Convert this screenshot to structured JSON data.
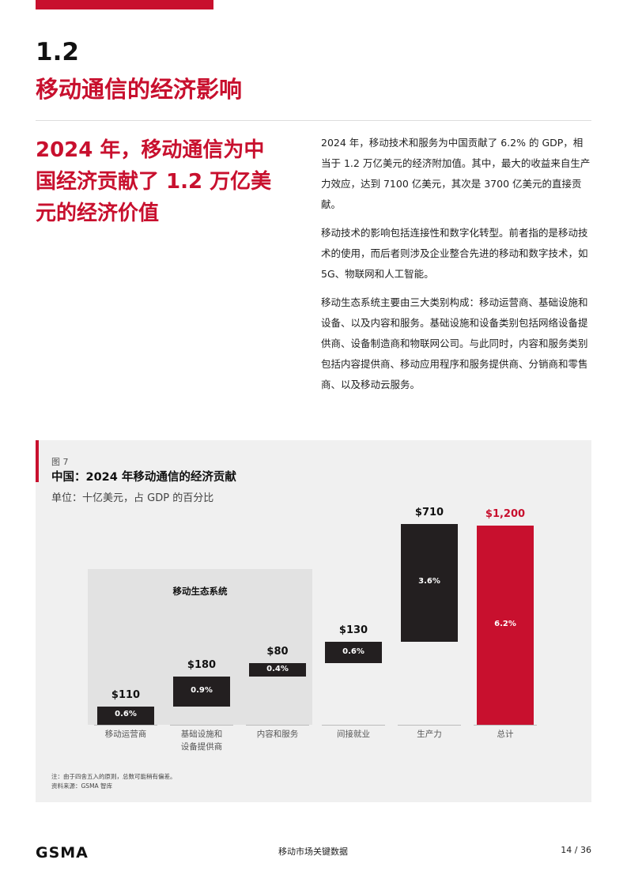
{
  "header": {
    "section": "1.2",
    "title": "移动通信的经济影响"
  },
  "headline": "2024 年，移动通信为中国经济贡献了 1.2 万亿美元的经济价值",
  "body": [
    "2024 年，移动技术和服务为中国贡献了 6.2% 的 GDP，相当于 1.2 万亿美元的经济附加值。其中，最大的收益来自生产力效应，达到 7100 亿美元，其次是 3700 亿美元的直接贡献。",
    "移动技术的影响包括连接性和数字化转型。前者指的是移动技术的使用，而后者则涉及企业整合先进的移动和数字技术，如 5G、物联网和人工智能。",
    "移动生态系统主要由三大类别构成：移动运营商、基础设施和设备、以及内容和服务。基础设施和设备类别包括网络设备提供商、设备制造商和物联网公司。与此同时，内容和服务类别包括内容提供商、移动应用程序和服务提供商、分销商和零售商、以及移动云服务。"
  ],
  "chart_data": {
    "type": "waterfall",
    "figure_label": "图 7",
    "title": "中国：2024 年移动通信的经济贡献",
    "subtitle": "单位：十亿美元，占 GDP 的百分比",
    "annotation": "移动生态系统",
    "categories": [
      "移动运营商",
      "基础设施和设备提供商",
      "内容和服务",
      "间接就业",
      "生产力",
      "总计"
    ],
    "values": [
      110,
      180,
      80,
      130,
      710,
      1200
    ],
    "value_labels": [
      "$110",
      "$180",
      "$80",
      "$130",
      "$710",
      "$1,200"
    ],
    "share_values": [
      0.6,
      0.9,
      0.4,
      0.6,
      3.6,
      6.2
    ],
    "share_labels": [
      "0.6%",
      "0.9%",
      "0.4%",
      "0.6%",
      "3.6%",
      "6.2%"
    ],
    "measure": [
      "relative",
      "relative",
      "relative",
      "relative",
      "relative",
      "total"
    ],
    "color": "#231f20",
    "total_color": "#c8102e",
    "notes": [
      "注：由于四舍五入的原则，总数可能稍有偏差。",
      "资料来源：GSMA 智库"
    ]
  },
  "footer": {
    "logo": "GSMA",
    "center": "移动市场关键数据",
    "page": "14 / 36"
  }
}
